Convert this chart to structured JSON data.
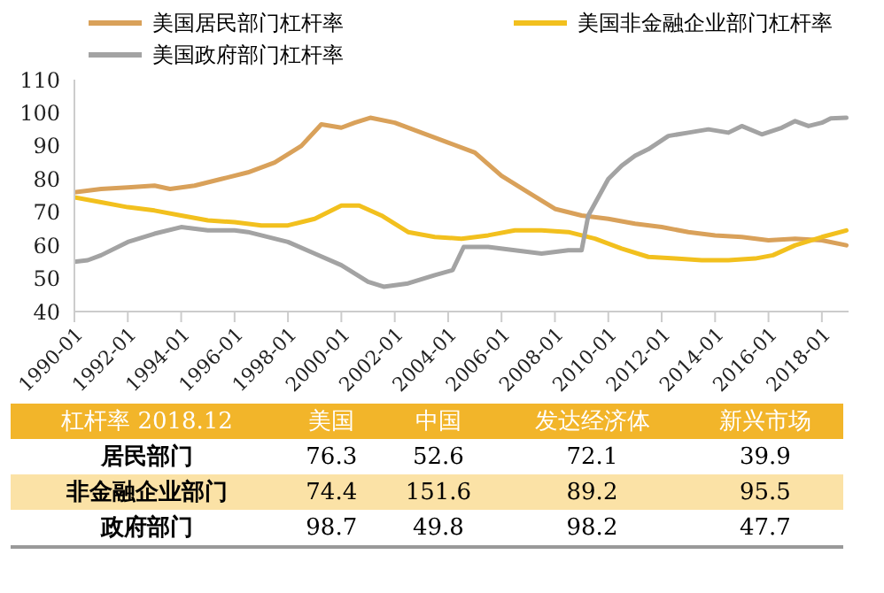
{
  "chart_data": [
    {
      "type": "line",
      "legend": "top",
      "marker": "none",
      "line_style": "solid",
      "xlim": [
        "1990-01",
        "2019-01"
      ],
      "xticks": [
        "1990-01",
        "1992-01",
        "1994-01",
        "1996-01",
        "1998-01",
        "2000-01",
        "2002-01",
        "2004-01",
        "2006-01",
        "2008-01",
        "2010-01",
        "2012-01",
        "2014-01",
        "2016-01",
        "2018-01"
      ],
      "ylim": [
        40,
        110
      ],
      "yticks": [
        40,
        50,
        60,
        70,
        80,
        90,
        100,
        110
      ],
      "series": [
        {
          "name": "美国居民部门杠杆率",
          "color": "#d9a15a",
          "x": [
            "1990-01",
            "1991-01",
            "1992-01",
            "1993-01",
            "1993-08",
            "1994-07",
            "1995-07",
            "1996-07",
            "1997-07",
            "1998-07",
            "1999-04",
            "2000-01",
            "2000-07",
            "2001-02",
            "2002-01",
            "2003-01",
            "2004-01",
            "2005-01",
            "2006-01",
            "2007-01",
            "2008-01",
            "2009-01",
            "2010-01",
            "2011-01",
            "2012-01",
            "2013-01",
            "2014-01",
            "2015-01",
            "2016-01",
            "2017-01",
            "2018-01",
            "2018-12"
          ],
          "values": [
            76,
            77,
            77.5,
            78,
            77,
            78,
            80,
            82,
            85,
            90,
            96.5,
            95.5,
            97,
            98.5,
            97,
            94,
            91,
            88,
            81,
            76,
            71,
            69,
            68,
            66.5,
            65.5,
            64,
            63,
            62.5,
            61.5,
            62,
            61.5,
            60
          ]
        },
        {
          "name": "美国非金融企业部门杠杆率",
          "color": "#f2c01e",
          "x": [
            "1990-01",
            "1991-01",
            "1992-01",
            "1993-01",
            "1994-01",
            "1995-01",
            "1996-01",
            "1997-01",
            "1998-01",
            "1999-01",
            "2000-01",
            "2000-09",
            "2001-07",
            "2002-07",
            "2003-07",
            "2004-07",
            "2005-07",
            "2006-07",
            "2007-07",
            "2008-07",
            "2009-07",
            "2010-07",
            "2011-07",
            "2012-07",
            "2013-07",
            "2014-07",
            "2015-07",
            "2016-03",
            "2017-01",
            "2018-01",
            "2018-12"
          ],
          "values": [
            74.5,
            73,
            71.5,
            70.5,
            69,
            67.5,
            67,
            66,
            66,
            68,
            72,
            72,
            69,
            64,
            62.5,
            62,
            63,
            64.5,
            64.5,
            64,
            62,
            59,
            56.5,
            56,
            55.5,
            55.5,
            56,
            57,
            60,
            62.5,
            64.5
          ]
        },
        {
          "name": "美国政府部门杠杆率",
          "color": "#a3a3a3",
          "x": [
            "1990-01",
            "1990-07",
            "1991-01",
            "1992-01",
            "1993-01",
            "1994-01",
            "1995-01",
            "1996-01",
            "1996-07",
            "1997-01",
            "1998-01",
            "1999-01",
            "2000-01",
            "2001-01",
            "2001-08",
            "2002-07",
            "2003-07",
            "2004-03",
            "2004-08",
            "2005-07",
            "2006-07",
            "2007-07",
            "2008-07",
            "2009-01",
            "2009-04",
            "2010-01",
            "2010-07",
            "2011-01",
            "2011-07",
            "2012-04",
            "2013-01",
            "2013-10",
            "2014-07",
            "2015-01",
            "2015-10",
            "2016-07",
            "2017-01",
            "2017-07",
            "2018-01",
            "2018-05",
            "2018-12"
          ],
          "values": [
            55,
            55.5,
            57,
            61,
            63.5,
            65.5,
            64.5,
            64.5,
            64,
            63,
            61,
            57.5,
            54,
            49,
            47.5,
            48.5,
            51,
            52.5,
            59.5,
            59.5,
            58.5,
            57.5,
            58.5,
            58.5,
            69,
            80,
            84,
            87,
            89,
            93,
            94,
            95,
            94,
            96,
            93.5,
            95.5,
            97.5,
            96,
            97,
            98.3,
            98.5
          ]
        }
      ]
    },
    {
      "type": "heatmap",
      "data_labels": true,
      "title": "杠杆率 2018.12",
      "categories": [
        "美国",
        "中国",
        "发达经济体",
        "新兴市场"
      ],
      "y_categories": [
        "居民部门",
        "非金融企业部门",
        "政府部门"
      ],
      "cells": [
        [
          76.3,
          52.6,
          72.1,
          39.9
        ],
        [
          74.4,
          151.6,
          89.2,
          95.5
        ],
        [
          98.7,
          49.8,
          98.2,
          47.7
        ]
      ]
    }
  ]
}
